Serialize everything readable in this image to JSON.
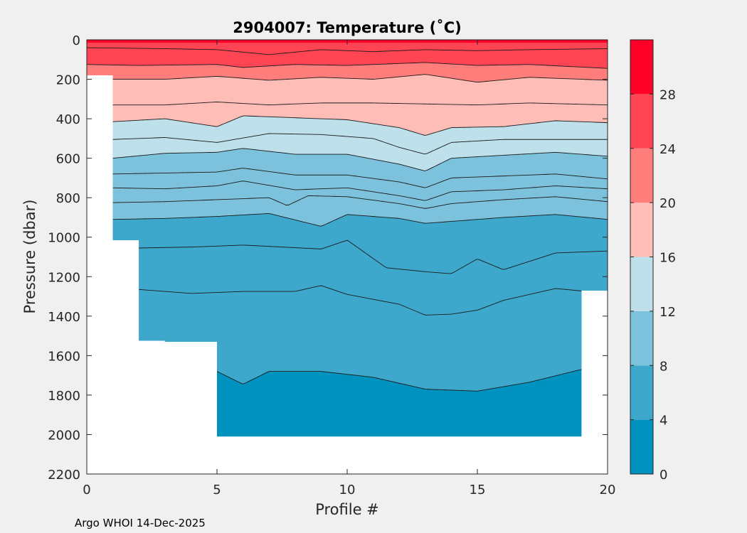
{
  "chart_data": {
    "type": "heatmap",
    "subtype": "filled-contour",
    "title": "2904007:  Temperature (˚C)",
    "xlabel": "Profile #",
    "ylabel": "Pressure (dbar)",
    "xlim": [
      0,
      20
    ],
    "ylim": [
      0,
      2200
    ],
    "y_reversed": true,
    "xticks": [
      "0",
      "5",
      "10",
      "15",
      "20"
    ],
    "yticks": [
      "0",
      "200",
      "400",
      "600",
      "800",
      "1000",
      "1200",
      "1400",
      "1600",
      "1800",
      "2000",
      "2200"
    ],
    "colorbar": {
      "ticks": [
        "0",
        "4",
        "8",
        "12",
        "16",
        "20",
        "24",
        "28"
      ],
      "levels": [
        0,
        4,
        8,
        12,
        16,
        20,
        24,
        28,
        32
      ],
      "colors": [
        "#0093bf",
        "#3da8cc",
        "#7dc2dc",
        "#bde0ea",
        "#ffbdb7",
        "#ff7d7b",
        "#ff4554",
        "#ff0028"
      ]
    },
    "profile_max_pressure": {
      "x": [
        0,
        1,
        2,
        3,
        4,
        5,
        6,
        7,
        8,
        9,
        10,
        11,
        12,
        13,
        14,
        15,
        16,
        17,
        18,
        19,
        20
      ],
      "dbar": [
        180,
        1015,
        1525,
        1530,
        1530,
        2010,
        2010,
        2010,
        2010,
        2010,
        2010,
        2010,
        2010,
        2010,
        2010,
        2010,
        2010,
        2010,
        2010,
        1270,
        1270
      ]
    },
    "contours": [
      {
        "level": 26,
        "x": [
          0,
          3,
          5,
          7,
          9,
          11,
          13,
          15,
          17,
          20
        ],
        "dbar": [
          40,
          45,
          50,
          75,
          50,
          60,
          50,
          55,
          50,
          45
        ]
      },
      {
        "level": 24,
        "x": [
          0,
          2,
          5,
          6,
          8,
          10,
          13,
          15,
          17,
          20
        ],
        "dbar": [
          125,
          130,
          125,
          140,
          125,
          130,
          115,
          130,
          125,
          145
        ]
      },
      {
        "level": 21,
        "x": [
          1,
          3,
          5,
          7,
          9,
          11,
          13,
          15,
          17,
          20
        ],
        "dbar": [
          200,
          200,
          185,
          205,
          190,
          200,
          175,
          215,
          190,
          205
        ]
      },
      {
        "level": 18,
        "x": [
          1,
          3,
          5,
          7,
          9,
          11,
          13,
          15,
          17,
          20
        ],
        "dbar": [
          330,
          330,
          315,
          330,
          320,
          320,
          325,
          330,
          320,
          330
        ]
      },
      {
        "level": 16,
        "x": [
          1,
          3,
          5,
          6,
          8,
          10,
          12,
          13,
          14,
          16,
          18,
          20
        ],
        "dbar": [
          415,
          400,
          440,
          385,
          395,
          405,
          445,
          485,
          445,
          440,
          410,
          420
        ]
      },
      {
        "level": 14,
        "x": [
          1,
          3,
          5,
          7,
          9,
          11,
          12,
          13,
          14,
          16,
          18,
          20
        ],
        "dbar": [
          505,
          495,
          520,
          475,
          480,
          500,
          545,
          580,
          520,
          505,
          505,
          505
        ]
      },
      {
        "level": 12,
        "x": [
          1,
          3,
          5,
          6,
          8,
          10,
          12,
          13,
          14,
          16,
          18,
          20
        ],
        "dbar": [
          600,
          575,
          570,
          550,
          580,
          580,
          630,
          665,
          600,
          585,
          570,
          590
        ]
      },
      {
        "level": 11,
        "x": [
          1,
          3,
          5,
          6,
          8,
          10,
          12,
          13,
          14,
          16,
          18,
          20
        ],
        "dbar": [
          680,
          675,
          670,
          650,
          685,
          685,
          720,
          750,
          700,
          690,
          680,
          705
        ]
      },
      {
        "level": 10,
        "x": [
          1,
          3,
          5,
          6,
          8,
          10,
          12,
          13,
          14,
          16,
          18,
          20
        ],
        "dbar": [
          750,
          755,
          740,
          715,
          760,
          750,
          790,
          815,
          770,
          760,
          740,
          755
        ]
      },
      {
        "level": 9,
        "x": [
          1,
          3,
          5,
          7,
          7.7,
          8.5,
          10,
          12,
          13,
          14,
          16,
          18,
          20
        ],
        "dbar": [
          825,
          820,
          810,
          800,
          840,
          790,
          795,
          830,
          855,
          830,
          810,
          795,
          820
        ]
      },
      {
        "level": 8,
        "x": [
          1,
          3,
          5,
          7,
          9,
          10,
          12,
          13,
          14,
          16,
          18,
          20
        ],
        "dbar": [
          910,
          905,
          895,
          880,
          945,
          885,
          905,
          930,
          920,
          900,
          885,
          910
        ]
      },
      {
        "level": 7,
        "x": [
          2,
          4,
          6,
          9,
          10,
          11.5,
          13,
          14,
          15,
          16,
          18,
          20
        ],
        "dbar": [
          1055,
          1050,
          1040,
          1060,
          1015,
          1155,
          1175,
          1185,
          1110,
          1165,
          1080,
          1070
        ]
      },
      {
        "level": 6,
        "x": [
          2,
          4,
          6,
          8,
          9,
          10,
          12,
          13,
          14,
          15,
          16,
          18,
          20
        ],
        "dbar": [
          1265,
          1285,
          1275,
          1275,
          1245,
          1290,
          1340,
          1395,
          1390,
          1370,
          1320,
          1260,
          1285
        ]
      },
      {
        "level": 4,
        "x": [
          5,
          6,
          7,
          9,
          11,
          13,
          15,
          17,
          19
        ],
        "dbar": [
          1680,
          1745,
          1680,
          1680,
          1710,
          1770,
          1780,
          1735,
          1670
        ]
      }
    ]
  },
  "footer": {
    "credit": "Argo WHOI 14-Dec-2025"
  }
}
